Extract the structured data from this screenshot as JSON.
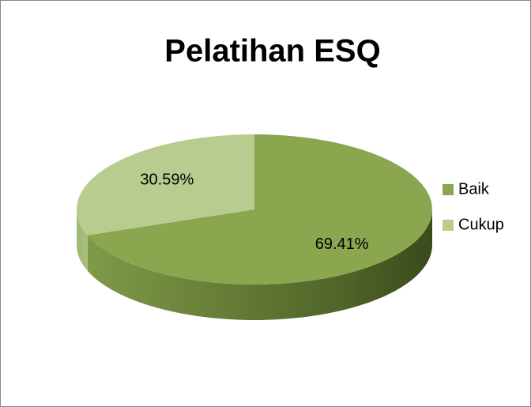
{
  "chart_data": {
    "type": "pie",
    "title": "Pelatihan ESQ",
    "categories": [
      "Baik",
      "Cukup"
    ],
    "values": [
      69.41,
      30.59
    ],
    "value_labels": [
      "69.41%",
      "30.59%"
    ],
    "colors": [
      "#8aa64f",
      "#b8cc8f"
    ],
    "legend": "right"
  }
}
